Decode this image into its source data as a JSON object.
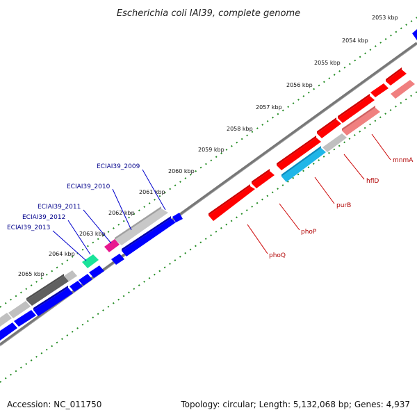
{
  "title": "Escherichia coli IAI39, complete genome",
  "footer": {
    "accession": "Accession: NC_011750",
    "summary": "Topology: circular; Length: 5,132,068 bp; Genes: 4,937"
  },
  "kbp_labels": [
    "2053 kbp",
    "2054 kbp",
    "2055 kbp",
    "2056 kbp",
    "2057 kbp",
    "2058 kbp",
    "2059 kbp",
    "2060 kbp",
    "2061 kbp",
    "2062 kbp",
    "2063 kbp",
    "2064 kbp",
    "2065 kbp"
  ],
  "gene_labels": {
    "blue": [
      "ECIAI39_2009",
      "ECIAI39_2010",
      "ECIAI39_2011",
      "ECIAI39_2012",
      "ECIAI39_2013"
    ],
    "red": [
      "mnmA",
      "hflD",
      "purB",
      "phoP",
      "phoQ"
    ]
  },
  "colors": {
    "plus_strand": "#ff0000",
    "plus_strand_light": "#f08080",
    "minus_strand": "#0000ff",
    "cyan_gene": "#1fb6e8",
    "teal_gene": "#1ae39a",
    "magenta_gene": "#e8198f",
    "gray_light": "#c0c0c0",
    "gray_dark": "#606060",
    "backbone": "#808080",
    "tick_green": "#228b22"
  }
}
